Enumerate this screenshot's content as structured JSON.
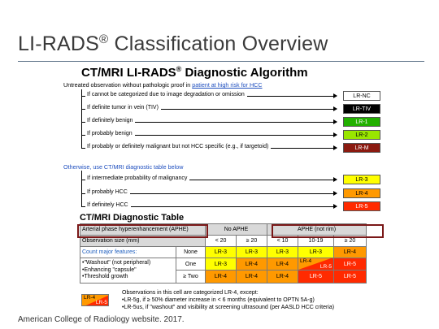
{
  "slide": {
    "title": "LI-RADS",
    "title_reg": "®",
    "title_rest": " Classification Overview",
    "footer": "American College of Radiology website. 2017."
  },
  "algorithm": {
    "title": "CT/MRI LI-RADS",
    "title_reg": "®",
    "title_rest": " Diagnostic Algorithm",
    "subtitle_pre": "Untreated observation without pathologic proof in ",
    "subtitle_link": "patient at high risk for HCC",
    "otherwise": "Otherwise, use CT/MRI diagnostic table below",
    "criteria_top": [
      {
        "label": "If cannot be categorized due to image degradation or omission",
        "cat": "LR-NC",
        "bg": "#ffffff",
        "fg": "#000000"
      },
      {
        "label": "If definite tumor in vein (TIV)",
        "cat": "LR-TIV",
        "bg": "#000000",
        "fg": "#ffffff"
      },
      {
        "label": "If definitely benign",
        "cat": "LR-1",
        "bg": "#22b000",
        "fg": "#ffffff"
      },
      {
        "label": "If probably benign",
        "cat": "LR-2",
        "bg": "#99e600",
        "fg": "#000000"
      },
      {
        "label": "If probably or definitely malignant but not HCC specific (e.g., if targetoid)",
        "cat": "LR-M",
        "bg": "#8b1a10",
        "fg": "#ffffff"
      }
    ],
    "criteria_bottom": [
      {
        "label": "If intermediate probability of malignancy",
        "cat": "LR-3",
        "bg": "#ffff00",
        "fg": "#000000"
      },
      {
        "label": "If probably HCC",
        "cat": "LR-4",
        "bg": "#ff9900",
        "fg": "#000000"
      },
      {
        "label": "If definitely HCC",
        "cat": "LR-5",
        "bg": "#ff2a00",
        "fg": "#ffffff"
      }
    ]
  },
  "table": {
    "title": "CT/MRI Diagnostic Table",
    "aphe_label": "Arterial phase hyperenhancement (APHE)",
    "no_aphe": "No APHE",
    "aphe": "APHE (not rim)",
    "size_label": "Observation size (mm)",
    "sizes": [
      "< 20",
      "≥ 20",
      "< 10",
      "10-19",
      "≥ 20"
    ],
    "major_label": "Count major features:",
    "features": [
      "•\"Washout\" (not peripheral)",
      "•Enhancing \"capsule\"",
      "•Threshold growth"
    ],
    "rows": [
      {
        "count": "None",
        "cells": [
          "LR-3",
          "LR-3",
          "LR-3",
          "LR-3",
          "LR-4"
        ]
      },
      {
        "count": "One",
        "cells": [
          "LR-3",
          "LR-4",
          "LR-4",
          "LR-4|LR-5",
          "LR-5"
        ]
      },
      {
        "count": "≥ Two",
        "cells": [
          "LR-4",
          "LR-4",
          "LR-4",
          "LR-5",
          "LR-5"
        ]
      }
    ]
  },
  "legend": {
    "cell_a": "LR-4",
    "cell_b": "LR-5",
    "line1": "Observations in this cell are categorized LR-4, except:",
    "line2": "•LR-5g, if ≥ 50% diameter increase in < 6 months (equivalent to OPTN 5A-g)",
    "line3": "•LR-5us, if \"washout\" and visibility at screening ultrasound (per AASLD HCC criteria)"
  }
}
